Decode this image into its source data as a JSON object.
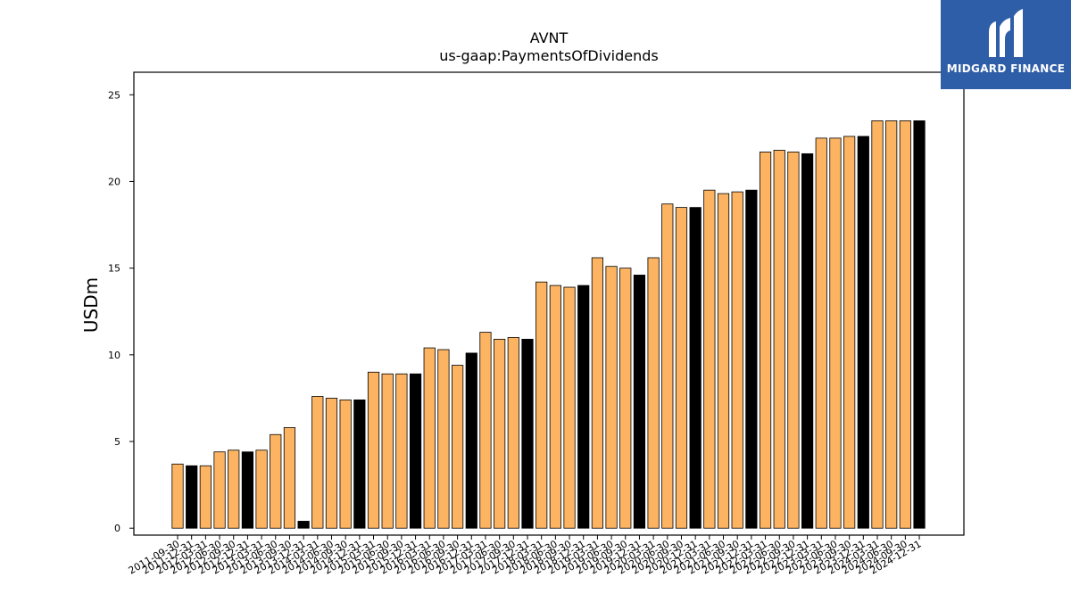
{
  "chart_data": {
    "type": "bar",
    "title": "AVNT",
    "subtitle": "us-gaap:PaymentsOfDividends",
    "xlabel": "",
    "ylabel": "USDm",
    "ylim": [
      -0.4,
      26.3
    ],
    "yticks": [
      0,
      5,
      10,
      15,
      20,
      25
    ],
    "grid": false,
    "legend": "none",
    "colors": {
      "quarter": "#fdb462",
      "annual": "#000000",
      "edge": "#000000"
    },
    "categories": [
      "2011-09-30",
      "2011-12-31",
      "2012-03-31",
      "2012-06-30",
      "2012-09-30",
      "2012-12-31",
      "2013-03-31",
      "2013-06-30",
      "2013-09-30",
      "2013-12-31",
      "2014-03-31",
      "2014-06-30",
      "2014-09-30",
      "2014-12-31",
      "2015-03-31",
      "2015-06-30",
      "2015-09-30",
      "2015-12-31",
      "2016-03-31",
      "2016-06-30",
      "2016-09-30",
      "2016-12-31",
      "2017-03-31",
      "2017-06-30",
      "2017-09-30",
      "2017-12-31",
      "2018-03-31",
      "2018-06-30",
      "2018-09-30",
      "2018-12-31",
      "2019-03-31",
      "2019-06-30",
      "2019-09-30",
      "2019-12-31",
      "2020-03-31",
      "2020-06-30",
      "2020-09-30",
      "2020-12-31",
      "2021-03-31",
      "2021-06-30",
      "2021-09-30",
      "2021-12-31",
      "2022-03-31",
      "2022-06-30",
      "2022-09-30",
      "2022-12-31",
      "2023-03-31",
      "2023-06-30",
      "2023-09-30",
      "2023-12-31",
      "2024-03-31",
      "2024-06-30",
      "2024-09-30",
      "2024-12-31"
    ],
    "values": [
      3.7,
      3.6,
      3.6,
      4.4,
      4.5,
      4.4,
      4.5,
      5.4,
      5.8,
      0.4,
      7.6,
      7.5,
      7.4,
      7.4,
      9.0,
      8.9,
      8.9,
      8.9,
      10.4,
      10.3,
      9.4,
      10.1,
      11.3,
      10.9,
      11.0,
      10.9,
      14.2,
      14.0,
      13.9,
      14.0,
      15.6,
      15.1,
      15.0,
      14.6,
      15.6,
      18.7,
      18.5,
      18.5,
      19.5,
      19.3,
      19.4,
      19.5,
      21.7,
      21.8,
      21.7,
      21.6,
      22.5,
      22.5,
      22.6,
      22.6,
      23.5,
      23.5,
      23.5,
      23.5
    ],
    "annual": [
      false,
      true,
      false,
      false,
      false,
      true,
      false,
      false,
      false,
      true,
      false,
      false,
      false,
      true,
      false,
      false,
      false,
      true,
      false,
      false,
      false,
      true,
      false,
      false,
      false,
      true,
      false,
      false,
      false,
      true,
      false,
      false,
      false,
      true,
      false,
      false,
      false,
      true,
      false,
      false,
      false,
      true,
      false,
      false,
      false,
      true,
      false,
      false,
      false,
      true,
      false,
      false,
      false,
      true
    ],
    "tick_labels": [
      "2011-09-30",
      "2011-12-31",
      "2012-03-31",
      "2012-06-30",
      "2012-09-30",
      "2012-12-31",
      "2013-03-31",
      "2013-06-30",
      "2013-09-30",
      "2013-12-31",
      "2014-03-31",
      "2014-06-30",
      "2014-09-30",
      "2014-12-31",
      "2015-03-31",
      "2015-06-30",
      "2015-09-30",
      "2015-12-31",
      "2016-03-31",
      "2016-06-30",
      "2016-09-30",
      "2016-12-31",
      "2017-03-31",
      "2017-06-30",
      "2017-09-30",
      "2017-12-31",
      "2018-03-31",
      "2018-06-30",
      "2018-09-30",
      "2018-12-31",
      "2019-03-31",
      "2019-06-30",
      "2019-09-30",
      "2019-12-31",
      "2020-03-31",
      "2020-06-30",
      "2020-09-30",
      "2020-12-31",
      "2021-03-31",
      "2021-06-30",
      "2021-09-30",
      "2021-12-31",
      "2022-03-31",
      "2022-06-30",
      "2022-09-30",
      "2022-12-31",
      "2023-03-31",
      "2023-06-30",
      "2023-09-30",
      "2023-12-31",
      "2024-03-31",
      "2024-06-30",
      "2024-09-30",
      "2024-12-31"
    ]
  },
  "logo": {
    "text": "MIDGARD FINANCE",
    "background": "#2f5ea8"
  }
}
